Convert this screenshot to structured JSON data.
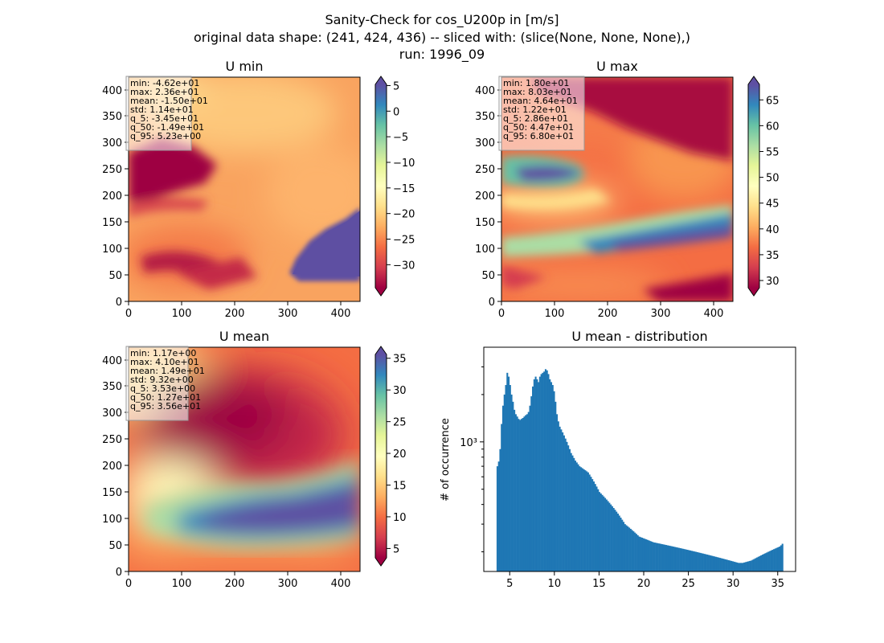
{
  "figure": {
    "title_lines": [
      "Sanity-Check for cos_U200p in [m/s]",
      "original data shape: (241, 424, 436) -- sliced with: (slice(None, None, None),)",
      "run: 1996_09"
    ]
  },
  "chart_data": [
    {
      "type": "heatmap",
      "title": "U min",
      "colormap": "Spectral",
      "xlim": [
        0,
        436
      ],
      "ylim": [
        0,
        424
      ],
      "xticks": [
        "0",
        "100",
        "200",
        "300",
        "400"
      ],
      "yticks": [
        "0",
        "50",
        "100",
        "150",
        "200",
        "250",
        "300",
        "350",
        "400"
      ],
      "colorbar": {
        "range": [
          -34.5,
          5.23
        ],
        "ticks": [
          5,
          0,
          -5,
          -10,
          -15,
          -20,
          -25,
          -30
        ],
        "tick_labels": [
          "5",
          "0",
          "−5",
          "−10",
          "−15",
          "−20",
          "−25",
          "−30"
        ],
        "extend": "both"
      },
      "stats": [
        "min: -4.62e+01",
        "max: 2.36e+01",
        "mean: -1.50e+01",
        "std: 1.14e+01",
        "q_5: -3.45e+01",
        "q_50: -1.49e+01",
        "q_95: 5.23e+00"
      ]
    },
    {
      "type": "heatmap",
      "title": "U max",
      "colormap": "Spectral",
      "xlim": [
        0,
        436
      ],
      "ylim": [
        0,
        424
      ],
      "xticks": [
        "0",
        "100",
        "200",
        "300",
        "400"
      ],
      "yticks": [
        "0",
        "50",
        "100",
        "150",
        "200",
        "250",
        "300",
        "350",
        "400"
      ],
      "colorbar": {
        "range": [
          28.6,
          68.0
        ],
        "ticks": [
          65,
          60,
          55,
          50,
          45,
          40,
          35,
          30
        ],
        "tick_labels": [
          "65",
          "60",
          "55",
          "50",
          "45",
          "40",
          "35",
          "30"
        ],
        "extend": "both"
      },
      "stats": [
        "min: 1.80e+01",
        "max: 8.03e+01",
        "mean: 4.64e+01",
        "std: 1.22e+01",
        "q_5: 2.86e+01",
        "q_50: 4.47e+01",
        "q_95: 6.80e+01"
      ]
    },
    {
      "type": "heatmap",
      "title": "U mean",
      "colormap": "Spectral",
      "xlim": [
        0,
        436
      ],
      "ylim": [
        0,
        424
      ],
      "xticks": [
        "0",
        "100",
        "200",
        "300",
        "400"
      ],
      "yticks": [
        "0",
        "50",
        "100",
        "150",
        "200",
        "250",
        "300",
        "350",
        "400"
      ],
      "colorbar": {
        "range": [
          3.53,
          35.6
        ],
        "ticks": [
          35,
          30,
          25,
          20,
          15,
          10,
          5
        ],
        "tick_labels": [
          "35",
          "30",
          "25",
          "20",
          "15",
          "10",
          "5"
        ],
        "extend": "both"
      },
      "stats": [
        "min: 1.17e+00",
        "max: 4.10e+01",
        "mean: 1.49e+01",
        "std: 9.32e+00",
        "q_5: 3.53e+00",
        "q_50: 1.27e+01",
        "q_95: 3.56e+01"
      ]
    },
    {
      "type": "bar",
      "title": "U mean - distribution",
      "ylabel": "# of occurrence",
      "yscale": "log",
      "xlim": [
        2.1,
        37.0
      ],
      "ylim": [
        150,
        4000
      ],
      "xticks": [
        5,
        10,
        15,
        20,
        25,
        30,
        35
      ],
      "ytick_major": [
        {
          "value": 1000,
          "label": "10³"
        }
      ],
      "color": "#1f77b4",
      "bin_range": [
        3.53,
        35.6
      ],
      "values": [
        700,
        750,
        900,
        1300,
        1700,
        2000,
        2300,
        2750,
        2600,
        2300,
        2000,
        1800,
        1600,
        1500,
        1450,
        1400,
        1380,
        1400,
        1420,
        1450,
        1480,
        1500,
        1550,
        1700,
        1950,
        2250,
        2500,
        2600,
        2500,
        2400,
        2600,
        2700,
        2750,
        2800,
        2900,
        2850,
        2700,
        2500,
        2400,
        2300,
        2100,
        1800,
        1500,
        1350,
        1250,
        1200,
        1150,
        1100,
        1050,
        1000,
        950,
        900,
        850,
        820,
        790,
        760,
        740,
        720,
        700,
        690,
        680,
        670,
        660,
        650,
        640,
        620,
        600,
        580,
        560,
        540,
        520,
        500,
        480,
        470,
        460,
        450,
        440,
        430,
        420,
        410,
        400,
        390,
        380,
        370,
        360,
        350,
        340,
        330,
        320,
        310,
        300,
        295,
        290,
        285,
        280,
        275,
        270,
        265,
        260,
        255,
        250,
        248,
        246,
        244,
        242,
        240,
        238,
        236,
        234,
        232,
        230,
        229,
        228,
        227,
        226,
        225,
        224,
        223,
        222,
        221,
        220,
        219,
        218,
        217,
        216,
        215,
        214,
        213,
        212,
        211,
        210,
        209,
        208,
        207,
        206,
        205,
        204,
        203,
        202,
        201,
        200,
        199,
        198,
        197,
        196,
        195,
        194,
        193,
        192,
        191,
        190,
        189,
        188,
        187,
        186,
        185,
        184,
        183,
        182,
        181,
        180,
        179,
        178,
        177,
        176,
        175,
        174,
        173,
        172,
        171,
        170,
        170,
        170,
        170,
        171,
        172,
        173,
        174,
        175,
        176,
        178,
        180,
        182,
        184,
        186,
        188,
        190,
        192,
        194,
        196,
        198,
        200,
        202,
        204,
        206,
        208,
        210,
        212,
        214,
        216,
        220,
        225
      ]
    }
  ]
}
